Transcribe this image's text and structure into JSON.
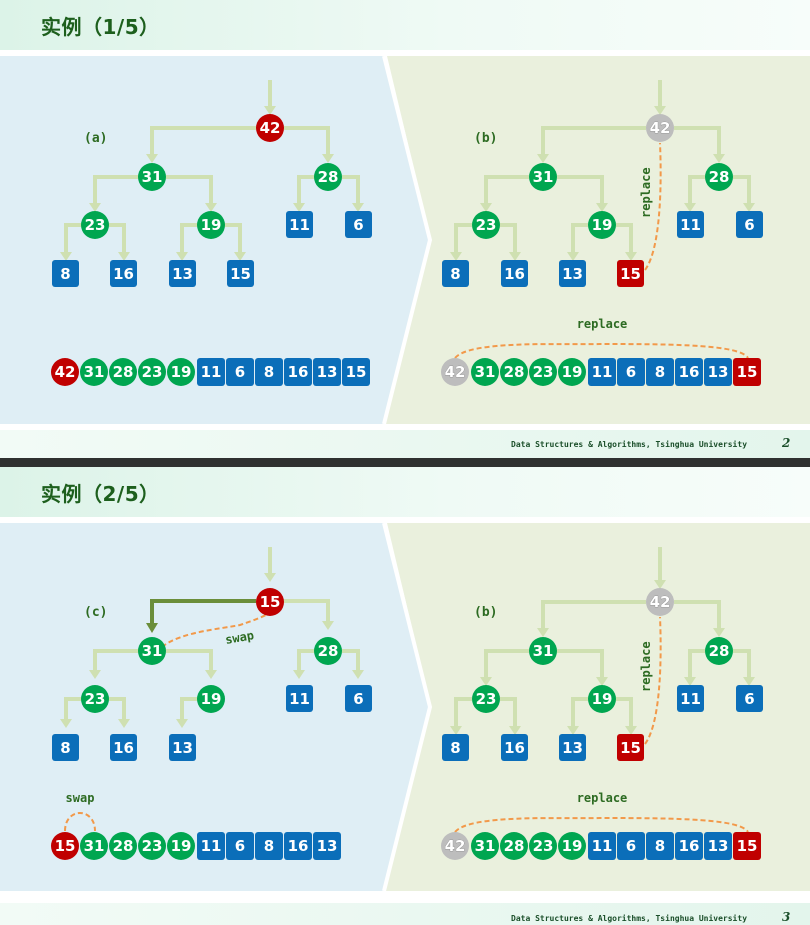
{
  "slides": [
    {
      "title": "实例（1/5）",
      "footer": "Data Structures & Algorithms, Tsinghua University",
      "page": "2",
      "left": {
        "label": "(a)",
        "root": "42",
        "l1": [
          "31",
          "28"
        ],
        "l2": [
          "23",
          "19",
          "11",
          "6"
        ],
        "l3": [
          "8",
          "16",
          "13",
          "15"
        ],
        "array": [
          "42",
          "31",
          "28",
          "23",
          "19",
          "11",
          "6",
          "8",
          "16",
          "13",
          "15"
        ]
      },
      "right": {
        "label": "(b)",
        "root": "42",
        "l1": [
          "31",
          "28"
        ],
        "l2": [
          "23",
          "19",
          "11",
          "6"
        ],
        "l3": [
          "8",
          "16",
          "13",
          "15"
        ],
        "array": [
          "42",
          "31",
          "28",
          "23",
          "19",
          "11",
          "6",
          "8",
          "16",
          "13",
          "15"
        ],
        "tree_annotation": "replace",
        "array_annotation": "replace"
      }
    },
    {
      "title": "实例（2/5）",
      "footer": "Data Structures & Algorithms, Tsinghua University",
      "page": "3",
      "left": {
        "label": "(c)",
        "root": "15",
        "l1": [
          "31",
          "28"
        ],
        "l2": [
          "23",
          "19",
          "11",
          "6"
        ],
        "l3": [
          "8",
          "16",
          "13"
        ],
        "array": [
          "15",
          "31",
          "28",
          "23",
          "19",
          "11",
          "6",
          "8",
          "16",
          "13"
        ],
        "tree_annotation": "swap",
        "array_annotation": "swap"
      },
      "right": {
        "label": "(b)",
        "root": "42",
        "l1": [
          "31",
          "28"
        ],
        "l2": [
          "23",
          "19",
          "11",
          "6"
        ],
        "l3": [
          "8",
          "16",
          "13",
          "15"
        ],
        "array": [
          "42",
          "31",
          "28",
          "23",
          "19",
          "11",
          "6",
          "8",
          "16",
          "13",
          "15"
        ],
        "tree_annotation": "replace",
        "array_annotation": "replace"
      }
    }
  ],
  "colors": {
    "max_node": "#c00000",
    "internal_node": "#00a650",
    "leaf_node": "#0b6eb9",
    "removed_node": "#bdbdbd",
    "edge": "#cfe0b1",
    "active_edge": "#6b8e3a",
    "annotation_curve": "#f2994a",
    "left_panel_bg": "#dfeef5",
    "right_panel_bg": "#eaf0dd"
  }
}
